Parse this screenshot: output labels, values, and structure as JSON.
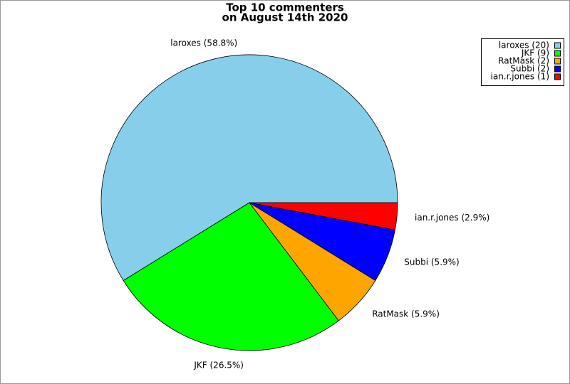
{
  "chart_data": {
    "type": "pie",
    "title": "Top 10 commenters",
    "subtitle": "on August 14th 2020",
    "values": [
      20,
      9,
      2,
      2,
      1
    ],
    "labels": [
      "laroxes (58.8%)",
      "JKF (26.5%)",
      "RatMask (5.9%)",
      "Subbi (5.9%)",
      "ian.r.jones (2.9%)"
    ],
    "legend_labels": [
      "laroxes (20)",
      "JKF (9)",
      "RatMask (2)",
      "Subbi (2)",
      "ian.r.jones (1)"
    ],
    "colors": [
      "#87ceeb",
      "#00ff00",
      "#ffa500",
      "#0000ff",
      "#ff0000"
    ],
    "legend": "top-right"
  }
}
